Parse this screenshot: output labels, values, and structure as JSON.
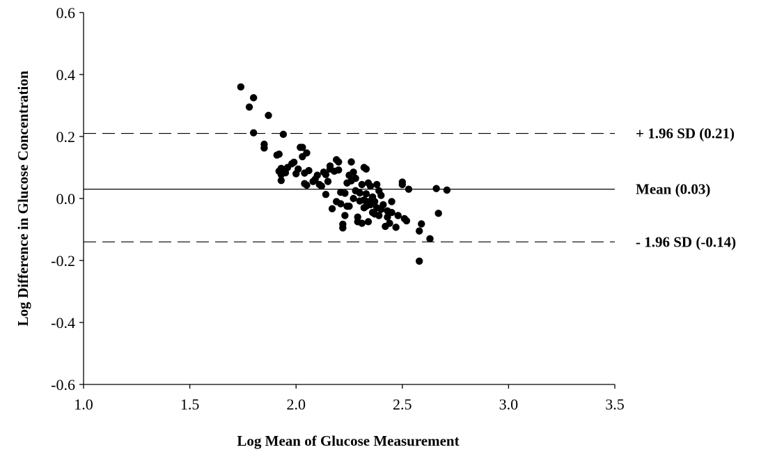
{
  "chart_data": {
    "type": "scatter",
    "title": "",
    "xlabel": "Log Mean of Glucose Measurement",
    "ylabel": "Log Difference in Glucose Concentration",
    "xlim": [
      1.0,
      3.5
    ],
    "ylim": [
      -0.6,
      0.6
    ],
    "x_ticks": [
      "1.0",
      "1.5",
      "2.0",
      "2.5",
      "3.0",
      "3.5"
    ],
    "y_ticks": [
      "0.6",
      "0.4",
      "0.2",
      "0.0",
      "-0.2",
      "-0.4",
      "-0.6"
    ],
    "grid": false,
    "legend": "none",
    "marker_color": "#000000",
    "reference_lines": [
      {
        "label": "+ 1.96 SD (0.21)",
        "value": 0.21,
        "style": "dashed"
      },
      {
        "label": "Mean (0.03)",
        "value": 0.03,
        "style": "solid"
      },
      {
        "label": "- 1.96 SD (-0.14)",
        "value": -0.14,
        "style": "dashed"
      }
    ],
    "points": [
      [
        1.74,
        0.36
      ],
      [
        1.78,
        0.295
      ],
      [
        1.8,
        0.325
      ],
      [
        1.8,
        0.212
      ],
      [
        1.87,
        0.268
      ],
      [
        1.85,
        0.175
      ],
      [
        1.85,
        0.163
      ],
      [
        1.94,
        0.207
      ],
      [
        1.91,
        0.14
      ],
      [
        1.92,
        0.143
      ],
      [
        1.92,
        0.088
      ],
      [
        1.93,
        0.097
      ],
      [
        1.93,
        0.077
      ],
      [
        1.94,
        0.09
      ],
      [
        1.95,
        0.083
      ],
      [
        1.93,
        0.058
      ],
      [
        1.96,
        0.1
      ],
      [
        1.98,
        0.112
      ],
      [
        1.99,
        0.117
      ],
      [
        2.0,
        0.08
      ],
      [
        2.01,
        0.095
      ],
      [
        2.02,
        0.165
      ],
      [
        2.03,
        0.165
      ],
      [
        2.03,
        0.135
      ],
      [
        2.04,
        0.082
      ],
      [
        2.05,
        0.147
      ],
      [
        2.06,
        0.09
      ],
      [
        2.04,
        0.048
      ],
      [
        2.05,
        0.043
      ],
      [
        2.08,
        0.055
      ],
      [
        2.09,
        0.062
      ],
      [
        2.1,
        0.075
      ],
      [
        2.11,
        0.045
      ],
      [
        2.12,
        0.04
      ],
      [
        2.13,
        0.085
      ],
      [
        2.14,
        0.077
      ],
      [
        2.14,
        0.013
      ],
      [
        2.15,
        0.055
      ],
      [
        2.16,
        0.095
      ],
      [
        2.16,
        0.105
      ],
      [
        2.17,
        -0.033
      ],
      [
        2.18,
        0.088
      ],
      [
        2.19,
        0.125
      ],
      [
        2.19,
        -0.01
      ],
      [
        2.2,
        0.118
      ],
      [
        2.2,
        0.092
      ],
      [
        2.21,
        0.02
      ],
      [
        2.21,
        -0.017
      ],
      [
        2.22,
        -0.083
      ],
      [
        2.22,
        -0.095
      ],
      [
        2.23,
        0.017
      ],
      [
        2.23,
        -0.055
      ],
      [
        2.24,
        0.05
      ],
      [
        2.24,
        -0.025
      ],
      [
        2.25,
        -0.025
      ],
      [
        2.25,
        0.075
      ],
      [
        2.26,
        0.057
      ],
      [
        2.26,
        0.118
      ],
      [
        2.27,
        0.085
      ],
      [
        2.27,
        0.0
      ],
      [
        2.28,
        0.065
      ],
      [
        2.28,
        0.025
      ],
      [
        2.29,
        -0.06
      ],
      [
        2.29,
        -0.075
      ],
      [
        2.3,
        0.018
      ],
      [
        2.3,
        -0.008
      ],
      [
        2.31,
        -0.08
      ],
      [
        2.31,
        0.045
      ],
      [
        2.32,
        0.1
      ],
      [
        2.32,
        -0.005
      ],
      [
        2.32,
        -0.03
      ],
      [
        2.33,
        0.095
      ],
      [
        2.33,
        0.015
      ],
      [
        2.33,
        -0.025
      ],
      [
        2.34,
        0.05
      ],
      [
        2.34,
        -0.01
      ],
      [
        2.34,
        -0.075
      ],
      [
        2.35,
        0.04
      ],
      [
        2.35,
        -0.02
      ],
      [
        2.36,
        -0.045
      ],
      [
        2.36,
        0.005
      ],
      [
        2.37,
        -0.01
      ],
      [
        2.37,
        -0.05
      ],
      [
        2.38,
        0.045
      ],
      [
        2.38,
        -0.03
      ],
      [
        2.39,
        0.025
      ],
      [
        2.39,
        -0.055
      ],
      [
        2.4,
        0.01
      ],
      [
        2.4,
        -0.035
      ],
      [
        2.41,
        -0.02
      ],
      [
        2.42,
        -0.09
      ],
      [
        2.43,
        -0.06
      ],
      [
        2.43,
        -0.04
      ],
      [
        2.44,
        -0.08
      ],
      [
        2.45,
        -0.01
      ],
      [
        2.45,
        -0.045
      ],
      [
        2.47,
        -0.093
      ],
      [
        2.48,
        -0.055
      ],
      [
        2.5,
        0.045
      ],
      [
        2.5,
        0.053
      ],
      [
        2.51,
        -0.065
      ],
      [
        2.52,
        -0.072
      ],
      [
        2.53,
        0.03
      ],
      [
        2.58,
        -0.105
      ],
      [
        2.59,
        -0.082
      ],
      [
        2.58,
        -0.202
      ],
      [
        2.63,
        -0.13
      ],
      [
        2.66,
        0.032
      ],
      [
        2.67,
        -0.048
      ],
      [
        2.71,
        0.027
      ]
    ]
  }
}
